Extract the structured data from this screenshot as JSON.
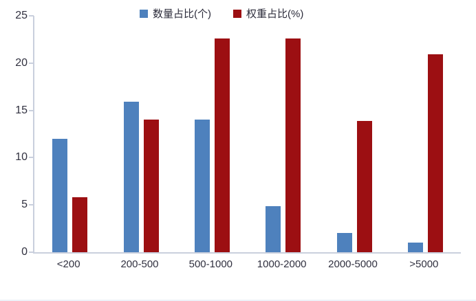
{
  "chart_data": {
    "type": "bar",
    "title": "",
    "xlabel": "",
    "ylabel": "",
    "categories": [
      "<200",
      "200-500",
      "500-1000",
      "1000-2000",
      "2000-5000",
      ">5000"
    ],
    "series": [
      {
        "name": "数量占比(个)",
        "color": "#4E81BD",
        "values": [
          12,
          15.9,
          14,
          4.9,
          2,
          1
        ]
      },
      {
        "name": "权重占比(%)",
        "color": "#9C0F12",
        "values": [
          5.8,
          14,
          22.6,
          22.6,
          13.9,
          20.9
        ]
      }
    ],
    "ylim": [
      0,
      25
    ],
    "yticks": [
      0,
      5,
      10,
      15,
      20,
      25
    ],
    "grid": false,
    "legend_position": "top-center",
    "background": "#ffffff",
    "axis_color": "#C9CFDD",
    "text_color": "#30303F"
  }
}
